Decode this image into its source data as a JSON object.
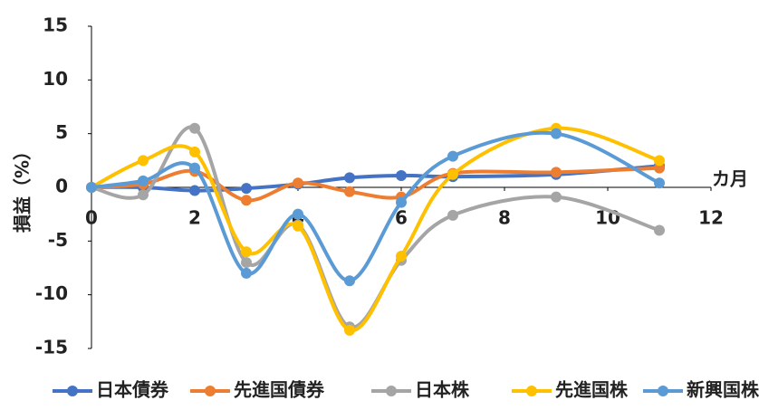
{
  "chart_data": {
    "type": "line",
    "smooth": true,
    "x": [
      0,
      1,
      2,
      3,
      4,
      5,
      6,
      7,
      9,
      11
    ],
    "series": [
      {
        "name": "日本債券",
        "color": "#4472c4",
        "values": [
          0,
          0,
          -0.3,
          -0.1,
          0.3,
          0.9,
          1.1,
          1.0,
          1.2,
          2.0
        ]
      },
      {
        "name": "先進国債券",
        "color": "#ed7d31",
        "values": [
          0,
          0.3,
          1.5,
          -1.2,
          0.4,
          -0.4,
          -0.9,
          1.3,
          1.4,
          1.8
        ]
      },
      {
        "name": "日本株",
        "color": "#a5a5a5",
        "values": [
          0,
          -0.7,
          5.5,
          -7.0,
          -3.5,
          -13.0,
          -6.8,
          -2.6,
          -0.9,
          -4.0
        ]
      },
      {
        "name": "先進国株",
        "color": "#ffc000",
        "values": [
          0,
          2.5,
          3.3,
          -6.0,
          -3.6,
          -13.3,
          -6.4,
          1.2,
          5.5,
          2.5
        ]
      },
      {
        "name": "新興国株",
        "color": "#5b9bd5",
        "values": [
          0,
          0.6,
          1.8,
          -8.0,
          -2.5,
          -8.7,
          -1.4,
          2.9,
          5.0,
          0.4
        ]
      }
    ],
    "x_label": "カ月",
    "y_label": "損益（%）",
    "xlim": [
      0,
      12
    ],
    "xticks": [
      0,
      2,
      4,
      6,
      8,
      10,
      12
    ],
    "ylim": [
      -15,
      15
    ],
    "yticks": [
      -15,
      -10,
      -5,
      0,
      5,
      10,
      15
    ],
    "grid": false,
    "legend": "bottom"
  }
}
